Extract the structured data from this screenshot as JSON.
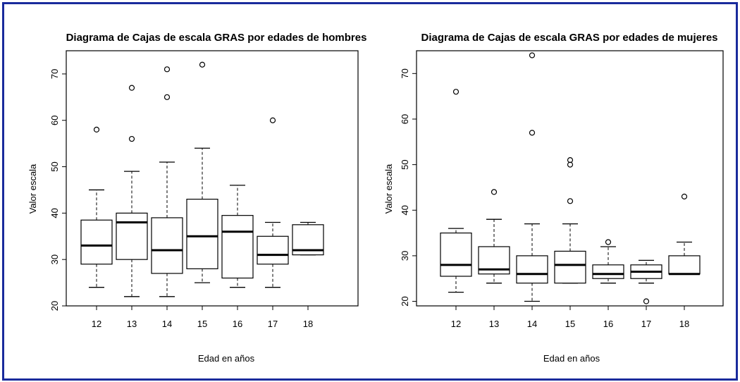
{
  "chart_data": [
    {
      "type": "boxplot",
      "title": "Diagrama de Cajas de escala GRAS por edades de hombres",
      "xlabel": "Edad en años",
      "ylabel": "Valor escala",
      "ylim": [
        20,
        75
      ],
      "yticks": [
        "20",
        "30",
        "40",
        "50",
        "60",
        "70"
      ],
      "categories": [
        "12",
        "13",
        "14",
        "15",
        "16",
        "17",
        "18"
      ],
      "boxes": [
        {
          "min": 24,
          "q1": 29,
          "median": 33,
          "q3": 38.5,
          "max": 45,
          "outliers": [
            58
          ]
        },
        {
          "min": 22,
          "q1": 30,
          "median": 38,
          "q3": 40,
          "max": 49,
          "outliers": [
            56,
            67
          ]
        },
        {
          "min": 22,
          "q1": 27,
          "median": 32,
          "q3": 39,
          "max": 51,
          "outliers": [
            65,
            71
          ]
        },
        {
          "min": 25,
          "q1": 28,
          "median": 35,
          "q3": 43,
          "max": 54,
          "outliers": [
            72
          ]
        },
        {
          "min": 24,
          "q1": 26,
          "median": 36,
          "q3": 39.5,
          "max": 46,
          "outliers": []
        },
        {
          "min": 24,
          "q1": 29,
          "median": 31,
          "q3": 35,
          "max": 38,
          "outliers": [
            60
          ]
        },
        {
          "min": 31,
          "q1": 31,
          "median": 32,
          "q3": 37.5,
          "max": 38,
          "outliers": []
        }
      ]
    },
    {
      "type": "boxplot",
      "title": "Diagrama de Cajas de escala GRAS por edades de mujeres",
      "xlabel": "Edad en años",
      "ylabel": "Valor escala",
      "ylim": [
        19,
        75
      ],
      "yticks": [
        "20",
        "30",
        "40",
        "50",
        "60",
        "70"
      ],
      "categories": [
        "12",
        "13",
        "14",
        "15",
        "16",
        "17",
        "18"
      ],
      "boxes": [
        {
          "min": 22,
          "q1": 25.5,
          "median": 28,
          "q3": 35,
          "max": 36,
          "outliers": [
            66
          ]
        },
        {
          "min": 24,
          "q1": 26,
          "median": 27,
          "q3": 32,
          "max": 38,
          "outliers": [
            44
          ]
        },
        {
          "min": 20,
          "q1": 24,
          "median": 26,
          "q3": 30,
          "max": 37,
          "outliers": [
            57,
            74
          ]
        },
        {
          "min": 24,
          "q1": 24,
          "median": 28,
          "q3": 31,
          "max": 37,
          "outliers": [
            42,
            50,
            51
          ]
        },
        {
          "min": 24,
          "q1": 25,
          "median": 26,
          "q3": 28,
          "max": 32,
          "outliers": [
            33
          ]
        },
        {
          "min": 24,
          "q1": 25,
          "median": 26.5,
          "q3": 28,
          "max": 29,
          "outliers": [
            20
          ]
        },
        {
          "min": 26,
          "q1": 26,
          "median": 26,
          "q3": 30,
          "max": 33,
          "outliers": [
            43
          ]
        }
      ]
    }
  ]
}
